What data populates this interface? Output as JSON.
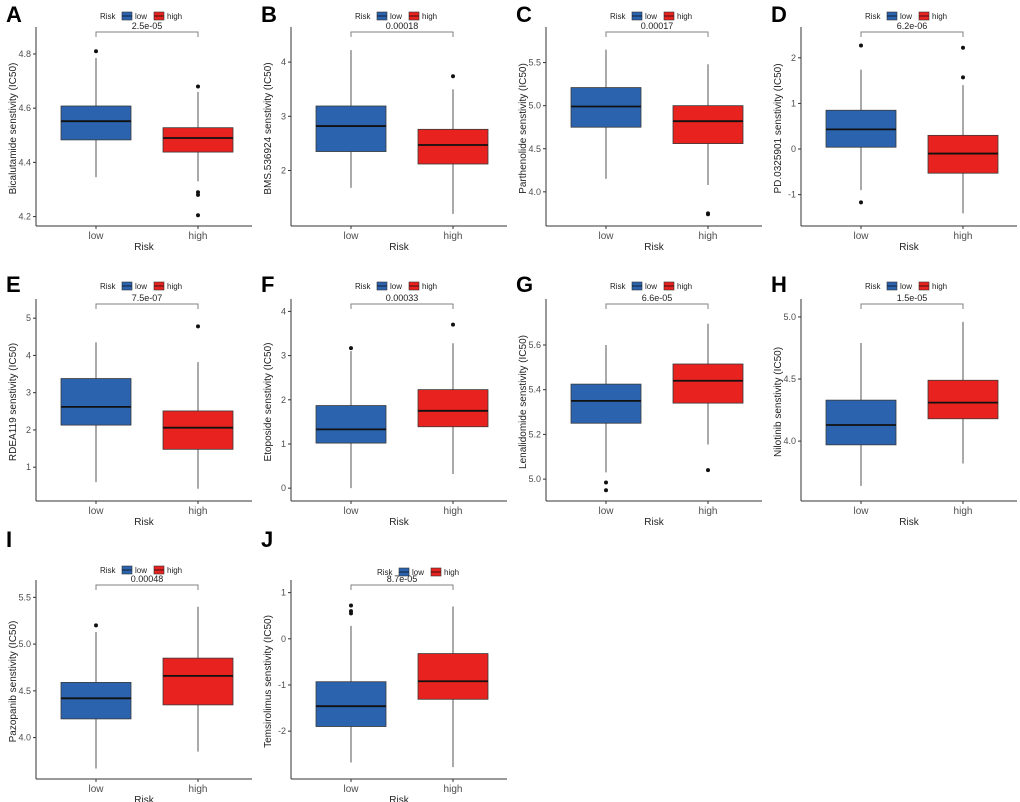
{
  "colors": {
    "low": "#2b63ae",
    "high": "#e8221f",
    "axis": "#333333",
    "bracket": "#808080"
  },
  "legend": {
    "title": "Risk",
    "labels": [
      "low",
      "high"
    ]
  },
  "chart_data": [
    {
      "type": "box",
      "panel": "A",
      "ylabel": "Bicalutamide senstivity (IC50)",
      "xlabel": "Risk",
      "categories": [
        "low",
        "high"
      ],
      "ylim": [
        4.18,
        4.87
      ],
      "yticks": [
        "4.2",
        "4.4",
        "4.6",
        "4.8"
      ],
      "pvalue": "2.5e-05",
      "boxes": [
        {
          "whislo": 4.345,
          "q1": 4.483,
          "med": 4.552,
          "q3": 4.608,
          "whishi": 4.785,
          "outliers": [
            4.81
          ]
        },
        {
          "whislo": 4.33,
          "q1": 4.438,
          "med": 4.49,
          "q3": 4.528,
          "whishi": 4.66,
          "outliers": [
            4.68,
            4.29,
            4.28,
            4.205
          ]
        }
      ]
    },
    {
      "type": "box",
      "panel": "B",
      "ylabel": "BMS.536924 senstivity (IC50)",
      "xlabel": "Risk",
      "categories": [
        "low",
        "high"
      ],
      "ylim": [
        1.05,
        4.5
      ],
      "yticks": [
        "2",
        "3",
        "4"
      ],
      "pvalue": "0.00018",
      "boxes": [
        {
          "whislo": 1.68,
          "q1": 2.35,
          "med": 2.82,
          "q3": 3.19,
          "whishi": 4.22,
          "outliers": []
        },
        {
          "whislo": 1.2,
          "q1": 2.12,
          "med": 2.47,
          "q3": 2.76,
          "whishi": 3.5,
          "outliers": [
            3.74
          ]
        }
      ]
    },
    {
      "type": "box",
      "panel": "C",
      "ylabel": "Parthenolide senstivity (IC50)",
      "xlabel": "Risk",
      "categories": [
        "low",
        "high"
      ],
      "ylim": [
        3.65,
        5.82
      ],
      "yticks": [
        "4.0",
        "4.5",
        "5.0",
        "5.5"
      ],
      "pvalue": "0.00017",
      "boxes": [
        {
          "whislo": 4.15,
          "q1": 4.75,
          "med": 4.99,
          "q3": 5.21,
          "whishi": 5.65,
          "outliers": []
        },
        {
          "whislo": 4.08,
          "q1": 4.56,
          "med": 4.82,
          "q3": 5.0,
          "whishi": 5.48,
          "outliers": [
            3.75,
            3.74
          ]
        }
      ]
    },
    {
      "type": "box",
      "panel": "D",
      "ylabel": "PD.0325901 senstivity (IC50)",
      "xlabel": "Risk",
      "categories": [
        "low",
        "high"
      ],
      "ylim": [
        -1.6,
        2.5
      ],
      "yticks": [
        "-1",
        "0",
        "1",
        "2"
      ],
      "pvalue": "6.2e-06",
      "boxes": [
        {
          "whislo": -0.9,
          "q1": 0.04,
          "med": 0.43,
          "q3": 0.85,
          "whishi": 1.74,
          "outliers": [
            2.27,
            -1.17
          ]
        },
        {
          "whislo": -1.41,
          "q1": -0.53,
          "med": -0.1,
          "q3": 0.3,
          "whishi": 1.4,
          "outliers": [
            2.22,
            1.57
          ]
        }
      ]
    },
    {
      "type": "box",
      "panel": "E",
      "ylabel": "RDEA119 senstivity (IC50)",
      "xlabel": "Risk",
      "categories": [
        "low",
        "high"
      ],
      "ylim": [
        0.2,
        5.3
      ],
      "yticks": [
        "1",
        "2",
        "3",
        "4",
        "5"
      ],
      "pvalue": "7.5e-07",
      "boxes": [
        {
          "whislo": 0.6,
          "q1": 2.13,
          "med": 2.62,
          "q3": 3.38,
          "whishi": 4.35,
          "outliers": []
        },
        {
          "whislo": 0.42,
          "q1": 1.48,
          "med": 2.06,
          "q3": 2.51,
          "whishi": 3.82,
          "outliers": [
            4.78
          ]
        }
      ]
    },
    {
      "type": "box",
      "panel": "F",
      "ylabel": "Etoposide senstivity (IC50)",
      "xlabel": "Risk",
      "categories": [
        "low",
        "high"
      ],
      "ylim": [
        -0.2,
        4.1
      ],
      "yticks": [
        "0",
        "1",
        "2",
        "3",
        "4"
      ],
      "pvalue": "0.00033",
      "boxes": [
        {
          "whislo": 0.0,
          "q1": 1.02,
          "med": 1.33,
          "q3": 1.87,
          "whishi": 3.1,
          "outliers": [
            3.17
          ]
        },
        {
          "whislo": 0.32,
          "q1": 1.39,
          "med": 1.75,
          "q3": 2.23,
          "whishi": 3.28,
          "outliers": [
            3.7
          ]
        }
      ]
    },
    {
      "type": "box",
      "panel": "G",
      "ylabel": "Lenalidomide senstivity (IC50)",
      "xlabel": "Risk",
      "categories": [
        "low",
        "high"
      ],
      "ylim": [
        4.92,
        5.77
      ],
      "yticks": [
        "5.0",
        "5.2",
        "5.4",
        "5.6"
      ],
      "pvalue": "6.6e-05",
      "boxes": [
        {
          "whislo": 5.03,
          "q1": 5.25,
          "med": 5.35,
          "q3": 5.425,
          "whishi": 5.6,
          "outliers": [
            4.985,
            4.95
          ]
        },
        {
          "whislo": 5.155,
          "q1": 5.34,
          "med": 5.44,
          "q3": 5.515,
          "whishi": 5.695,
          "outliers": [
            5.04
          ]
        }
      ]
    },
    {
      "type": "box",
      "panel": "H",
      "ylabel": "Nilotinib senstivity (IC50)",
      "xlabel": "Risk",
      "categories": [
        "low",
        "high"
      ],
      "ylim": [
        3.55,
        5.08
      ],
      "yticks": [
        "4.0",
        "4.5",
        "5.0"
      ],
      "pvalue": "1.5e-05",
      "boxes": [
        {
          "whislo": 3.64,
          "q1": 3.97,
          "med": 4.13,
          "q3": 4.33,
          "whishi": 4.79,
          "outliers": []
        },
        {
          "whislo": 3.82,
          "q1": 4.18,
          "med": 4.31,
          "q3": 4.49,
          "whishi": 4.96,
          "outliers": []
        }
      ]
    },
    {
      "type": "box",
      "panel": "I",
      "ylabel": "Pazopanib senstivity (IC50)",
      "xlabel": "Risk",
      "categories": [
        "low",
        "high"
      ],
      "ylim": [
        3.6,
        5.6
      ],
      "yticks": [
        "4.0",
        "4.5",
        "5.0",
        "5.5"
      ],
      "pvalue": "0.00048",
      "boxes": [
        {
          "whislo": 3.67,
          "q1": 4.2,
          "med": 4.42,
          "q3": 4.59,
          "whishi": 5.13,
          "outliers": [
            5.2
          ]
        },
        {
          "whislo": 3.85,
          "q1": 4.35,
          "med": 4.66,
          "q3": 4.85,
          "whishi": 5.4,
          "outliers": []
        }
      ]
    },
    {
      "type": "box",
      "panel": "J",
      "ylabel": "Temsirolimus senstivity (IC50)",
      "xlabel": "Risk",
      "categories": [
        "low",
        "high"
      ],
      "ylim": [
        -2.95,
        1.1
      ],
      "yticks": [
        "-2",
        "-1",
        "0",
        "1"
      ],
      "pvalue": "8.7e-05",
      "boxes": [
        {
          "whislo": -2.68,
          "q1": -1.9,
          "med": -1.46,
          "q3": -0.93,
          "whishi": 0.28,
          "outliers": [
            0.72,
            0.6,
            0.55
          ]
        },
        {
          "whislo": -2.78,
          "q1": -1.31,
          "med": -0.92,
          "q3": -0.32,
          "whishi": 0.7,
          "outliers": []
        }
      ]
    }
  ]
}
